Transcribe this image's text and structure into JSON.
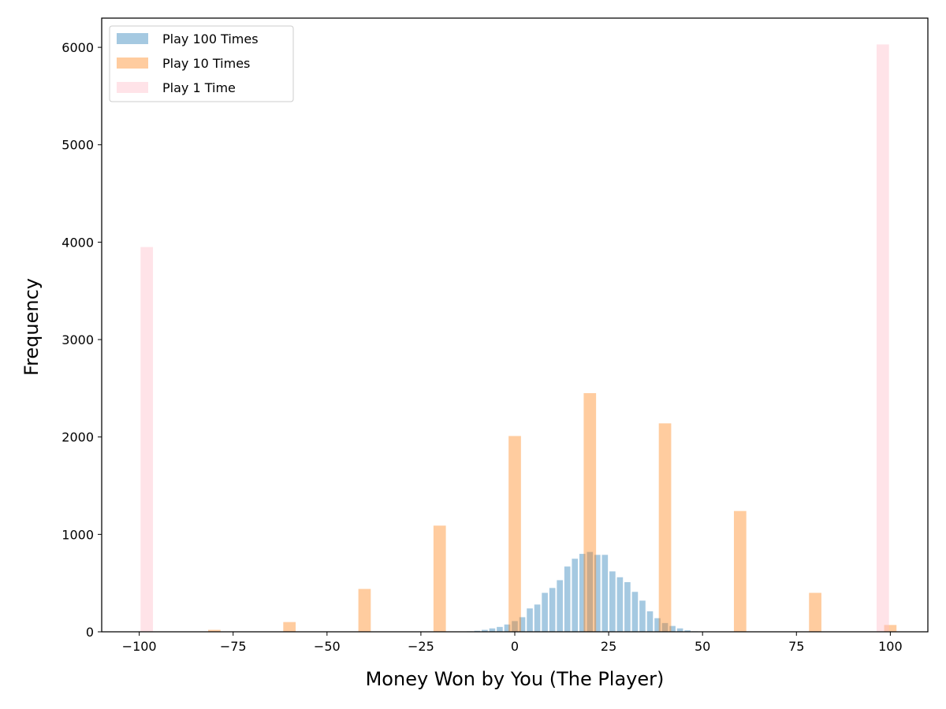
{
  "chart_data": {
    "type": "histogram",
    "xlabel": "Money Won by You (The Player)",
    "ylabel": "Frequency",
    "xlim": [
      -110,
      110
    ],
    "ylim": [
      0,
      6300
    ],
    "xticks": [
      -100,
      -75,
      -50,
      -25,
      0,
      25,
      50,
      75,
      100
    ],
    "xtick_labels": [
      "−100",
      "−75",
      "−50",
      "−25",
      "0",
      "25",
      "50",
      "75",
      "100"
    ],
    "yticks": [
      0,
      1000,
      2000,
      3000,
      4000,
      5000,
      6000
    ],
    "ytick_labels": [
      "0",
      "1000",
      "2000",
      "3000",
      "4000",
      "5000",
      "6000"
    ],
    "legend_position": "top-left",
    "series": [
      {
        "name": "Play 100 Times",
        "color": "#1f77b4",
        "alpha": 0.4,
        "bin_width": 1.6,
        "x": [
          -12,
          -10,
          -8,
          -6,
          -4,
          -2,
          0,
          2,
          4,
          6,
          8,
          10,
          12,
          14,
          16,
          18,
          20,
          22,
          24,
          26,
          28,
          30,
          32,
          34,
          36,
          38,
          40,
          42,
          44,
          46,
          48
        ],
        "values": [
          5,
          10,
          20,
          35,
          50,
          75,
          110,
          150,
          240,
          280,
          400,
          450,
          530,
          670,
          750,
          800,
          820,
          790,
          790,
          620,
          560,
          510,
          410,
          320,
          210,
          140,
          90,
          60,
          35,
          15,
          5
        ]
      },
      {
        "name": "Play 10 Times",
        "color": "#ff7f0e",
        "alpha": 0.4,
        "bin_width": 3.3,
        "x": [
          -80,
          -60,
          -40,
          -20,
          0,
          20,
          40,
          60,
          80,
          100
        ],
        "values": [
          20,
          100,
          440,
          1090,
          2010,
          2450,
          2140,
          1240,
          400,
          70
        ]
      },
      {
        "name": "Play 1 Time",
        "color": "#ffc0cb",
        "alpha": 0.45,
        "bin_width": 3.3,
        "x": [
          -98,
          98
        ],
        "values": [
          3950,
          6030
        ]
      }
    ]
  }
}
